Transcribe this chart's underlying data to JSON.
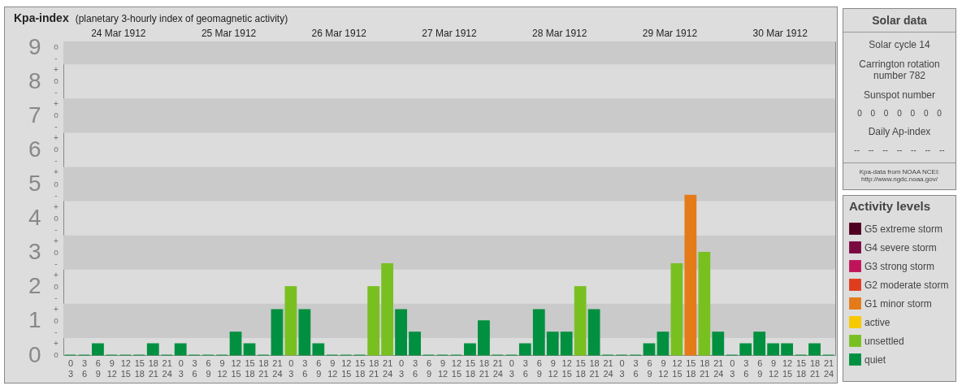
{
  "chart_data": {
    "type": "bar",
    "title": "Kpa-index",
    "subtitle": "(planetary 3-hourly index of geomagnetic activity)",
    "categories": [
      "0\n3",
      "3\n6",
      "6\n9",
      "9\n12",
      "12\n15",
      "15\n18",
      "18\n21",
      "21\n24",
      "0\n3",
      "3\n6",
      "6\n9",
      "9\n12",
      "12\n15",
      "15\n18",
      "18\n21",
      "21\n24",
      "0\n3",
      "3\n6",
      "6\n9",
      "9\n12",
      "12\n15",
      "15\n18",
      "18\n21",
      "21\n24",
      "0\n3",
      "3\n6",
      "6\n9",
      "9\n12",
      "12\n15",
      "15\n18",
      "18\n21",
      "21\n24",
      "0\n3",
      "3\n6",
      "6\n9",
      "9\n12",
      "12\n15",
      "15\n18",
      "18\n21",
      "21\n24",
      "0\n3",
      "3\n6",
      "6\n9",
      "9\n12",
      "12\n15",
      "15\n18",
      "18\n21",
      "21\n24",
      "0\n3",
      "3\n6",
      "6\n9",
      "9\n12",
      "12\n15",
      "15\n18",
      "18\n21",
      "21\n24"
    ],
    "series": [
      {
        "name": "G5 extreme storm",
        "color": "#4d0020",
        "values": [
          null,
          null,
          null,
          null,
          null,
          null,
          null,
          null,
          null,
          null,
          null,
          null,
          null,
          null,
          null,
          null,
          null,
          null,
          null,
          null,
          null,
          null,
          null,
          null,
          null,
          null,
          null,
          null,
          null,
          null,
          null,
          null,
          null,
          null,
          null,
          null,
          null,
          null,
          null,
          null,
          null,
          null,
          null,
          null,
          null,
          null,
          null,
          null,
          null,
          null,
          null,
          null,
          null,
          null,
          null,
          null
        ]
      },
      {
        "name": "G4 severe storm",
        "color": "#7a0a40",
        "values": [
          null,
          null,
          null,
          null,
          null,
          null,
          null,
          null,
          null,
          null,
          null,
          null,
          null,
          null,
          null,
          null,
          null,
          null,
          null,
          null,
          null,
          null,
          null,
          null,
          null,
          null,
          null,
          null,
          null,
          null,
          null,
          null,
          null,
          null,
          null,
          null,
          null,
          null,
          null,
          null,
          null,
          null,
          null,
          null,
          null,
          null,
          null,
          null,
          null,
          null,
          null,
          null,
          null,
          null,
          null,
          null
        ]
      },
      {
        "name": "G3 strong storm",
        "color": "#c0135a",
        "values": [
          null,
          null,
          null,
          null,
          null,
          null,
          null,
          null,
          null,
          null,
          null,
          null,
          null,
          null,
          null,
          null,
          null,
          null,
          null,
          null,
          null,
          null,
          null,
          null,
          null,
          null,
          null,
          null,
          null,
          null,
          null,
          null,
          null,
          null,
          null,
          null,
          null,
          null,
          null,
          null,
          null,
          null,
          null,
          null,
          null,
          null,
          null,
          null,
          null,
          null,
          null,
          null,
          null,
          null,
          null,
          null
        ]
      },
      {
        "name": "G2 moderate storm",
        "color": "#e03c1e",
        "values": [
          null,
          null,
          null,
          null,
          null,
          null,
          null,
          null,
          null,
          null,
          null,
          null,
          null,
          null,
          null,
          null,
          null,
          null,
          null,
          null,
          null,
          null,
          null,
          null,
          null,
          null,
          null,
          null,
          null,
          null,
          null,
          null,
          null,
          null,
          null,
          null,
          null,
          null,
          null,
          null,
          null,
          null,
          null,
          null,
          null,
          null,
          null,
          null,
          null,
          null,
          null,
          null,
          null,
          null,
          null,
          null
        ]
      },
      {
        "name": "G1 minor storm",
        "color": "#e57a18",
        "values": [
          null,
          null,
          null,
          null,
          null,
          null,
          null,
          null,
          null,
          null,
          null,
          null,
          null,
          null,
          null,
          null,
          null,
          null,
          null,
          null,
          null,
          null,
          null,
          null,
          null,
          null,
          null,
          null,
          null,
          null,
          null,
          null,
          null,
          null,
          null,
          null,
          null,
          null,
          null,
          null,
          null,
          null,
          null,
          null,
          null,
          4.67,
          null,
          null,
          null,
          null,
          null,
          null,
          null,
          null,
          null,
          null
        ]
      },
      {
        "name": "active",
        "color": "#f8c800",
        "values": [
          null,
          null,
          null,
          null,
          null,
          null,
          null,
          null,
          null,
          null,
          null,
          null,
          null,
          null,
          null,
          null,
          null,
          null,
          null,
          null,
          null,
          null,
          null,
          null,
          null,
          null,
          null,
          null,
          null,
          null,
          null,
          null,
          null,
          null,
          null,
          null,
          null,
          null,
          null,
          null,
          null,
          null,
          null,
          null,
          null,
          null,
          null,
          null,
          null,
          null,
          null,
          null,
          null,
          null,
          null,
          null
        ]
      },
      {
        "name": "unsettled",
        "color": "#78c020",
        "values": [
          null,
          null,
          null,
          null,
          null,
          null,
          null,
          null,
          null,
          null,
          null,
          null,
          null,
          null,
          null,
          null,
          2,
          null,
          null,
          null,
          null,
          null,
          2,
          2.67,
          null,
          null,
          null,
          null,
          null,
          null,
          null,
          null,
          null,
          null,
          null,
          null,
          null,
          2,
          null,
          null,
          null,
          null,
          null,
          null,
          2.67,
          null,
          3,
          null,
          null,
          null,
          null,
          null,
          null,
          null,
          null,
          null
        ]
      },
      {
        "name": "quiet",
        "color": "#00903f",
        "values": [
          0,
          0,
          0.33,
          0,
          0,
          0,
          0.33,
          0,
          0.33,
          0,
          0,
          0,
          0.67,
          0.33,
          0,
          1.33,
          null,
          1.33,
          0.33,
          0,
          0,
          0,
          null,
          null,
          1.33,
          0.67,
          0,
          0,
          0,
          0.33,
          1,
          0,
          0,
          0.33,
          1.33,
          0.67,
          0.67,
          null,
          1.33,
          0,
          0,
          0,
          0.33,
          0.67,
          null,
          null,
          null,
          0.67,
          0,
          0.33,
          0.67,
          0.33,
          0.33,
          0,
          0.33,
          0
        ]
      }
    ],
    "ylim": [
      0,
      9.17
    ],
    "yticks": [
      0,
      1,
      2,
      3,
      4,
      5,
      6,
      7,
      8,
      9
    ],
    "bands": [
      {
        "axis": "y",
        "from": 0.5,
        "to": 1.5,
        "color": "#cacaca"
      },
      {
        "axis": "y",
        "from": 2.5,
        "to": 3.5,
        "color": "#cacaca"
      },
      {
        "axis": "y",
        "from": 4.5,
        "to": 5.5,
        "color": "#cacaca"
      },
      {
        "axis": "y",
        "from": 6.5,
        "to": 7.5,
        "color": "#cacaca"
      },
      {
        "axis": "y",
        "from": 8.5,
        "to": 9.17,
        "color": "#cacaca"
      }
    ],
    "legend": "right",
    "legend_title": "Activity levels",
    "annotations": [
      {
        "text": "24 Mar 1912"
      },
      {
        "text": "25 Mar 1912"
      },
      {
        "text": "26 Mar 1912"
      },
      {
        "text": "27 Mar 1912"
      },
      {
        "text": "28 Mar 1912"
      },
      {
        "text": "29 Mar 1912"
      },
      {
        "text": "30 Mar 1912"
      },
      "o",
      "+",
      "-",
      "o",
      "+",
      "-",
      "o",
      "+",
      "-",
      "o",
      "+",
      "-",
      "o",
      "+",
      "-",
      "o",
      "+",
      "-",
      "o",
      "+",
      "-",
      "o",
      "+",
      "-",
      "o",
      "+",
      "-",
      "o",
      "Solar data",
      "Solar cycle 14",
      "Carrington rotation number 782",
      "Sunspot number",
      "0 0 0 0 0 0 0",
      "Daily Ap-index",
      "-- -- -- -- -- -- --",
      "Kpa-data from NOAA NCEI: http://www.ngdc.noaa.gov/"
    ]
  }
}
